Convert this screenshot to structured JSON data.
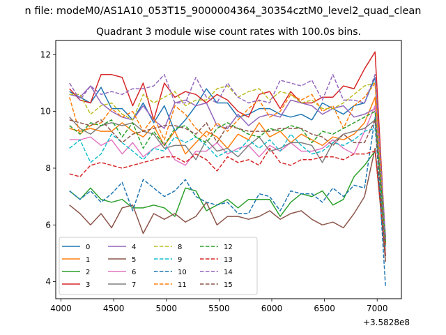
{
  "chart_data": {
    "type": "line",
    "suptitle": "n file: modeM0/AS1A10_053T15_9000004364_30354cztM0_level2_quad_clean",
    "title": "Quadrant 3 module wise count rates with 100.0s bins.",
    "xlabel": "",
    "ylabel": "",
    "x_offset_label": "+3.5828e8",
    "xlim": [
      3950,
      7230
    ],
    "ylim": [
      3.4,
      12.5
    ],
    "xticks": [
      4000,
      4500,
      5000,
      5500,
      6000,
      6500,
      7000
    ],
    "yticks": [
      4,
      6,
      8,
      10,
      12
    ],
    "grid": false,
    "legend_position": "lower-left",
    "legend_columns": 4,
    "x": [
      4080,
      4180,
      4280,
      4380,
      4480,
      4580,
      4680,
      4780,
      4880,
      4980,
      5080,
      5180,
      5280,
      5380,
      5480,
      5580,
      5680,
      5780,
      5880,
      5980,
      6080,
      6180,
      6280,
      6380,
      6480,
      6580,
      6680,
      6780,
      6880,
      6980,
      7080
    ],
    "series": [
      {
        "name": "0",
        "color": "#1f77b4",
        "style": "solid",
        "values": [
          10.7,
          10.5,
          10.3,
          10.85,
          10.1,
          10.1,
          9.7,
          10.3,
          9.6,
          10.2,
          9.3,
          9.7,
          10.2,
          10.8,
          10.3,
          10.3,
          9.8,
          9.9,
          10.1,
          10.1,
          9.9,
          9.8,
          9.9,
          9.7,
          10.3,
          10.1,
          9.9,
          10.2,
          10.3,
          11.2,
          5.5
        ]
      },
      {
        "name": "1",
        "color": "#ff7f0e",
        "style": "solid",
        "values": [
          9.4,
          9.3,
          9.4,
          9.3,
          9.3,
          9.6,
          9.3,
          9.1,
          9.5,
          8.8,
          9.3,
          8.5,
          8.9,
          9.3,
          9.1,
          8.7,
          9.2,
          9.0,
          9.6,
          9.1,
          9.3,
          8.9,
          9.2,
          9.0,
          8.8,
          9.1,
          9.0,
          9.2,
          9.6,
          10.5,
          5.5
        ]
      },
      {
        "name": "2",
        "color": "#2ca02c",
        "style": "solid",
        "values": [
          7.2,
          6.9,
          7.3,
          6.9,
          6.8,
          6.9,
          6.6,
          6.6,
          6.7,
          6.6,
          6.3,
          7.3,
          7.2,
          6.5,
          6.7,
          6.9,
          6.6,
          6.9,
          6.9,
          6.9,
          6.3,
          6.8,
          7.1,
          7.0,
          7.2,
          6.7,
          6.9,
          7.7,
          8.1,
          8.6,
          5.5
        ]
      },
      {
        "name": "3",
        "color": "#d62728",
        "style": "solid",
        "values": [
          10.8,
          10.4,
          10.3,
          11.3,
          11.3,
          11.2,
          10.2,
          11.0,
          9.7,
          11.0,
          10.5,
          10.7,
          10.6,
          10.3,
          10.6,
          10.4,
          10.0,
          9.8,
          10.6,
          10.7,
          10.1,
          10.7,
          10.3,
          10.3,
          10.5,
          10.5,
          10.9,
          10.8,
          11.5,
          12.1,
          5.3
        ]
      },
      {
        "name": "4",
        "color": "#9467bd",
        "style": "solid",
        "values": [
          10.6,
          10.5,
          10.9,
          10.3,
          10.0,
          9.8,
          9.7,
          10.2,
          9.7,
          9.4,
          10.3,
          10.4,
          10.2,
          10.3,
          9.5,
          9.4,
          9.9,
          9.5,
          9.8,
          9.9,
          9.8,
          10.4,
          10.3,
          10.2,
          9.9,
          10.1,
          10.2,
          9.8,
          9.9,
          10.1,
          5.4
        ]
      },
      {
        "name": "5",
        "color": "#8c564b",
        "style": "solid",
        "values": [
          6.7,
          6.4,
          6.0,
          6.4,
          5.9,
          6.6,
          6.7,
          5.7,
          6.4,
          6.2,
          6.4,
          6.1,
          6.3,
          6.8,
          6.0,
          6.3,
          6.3,
          6.2,
          6.3,
          6.5,
          6.2,
          6.4,
          6.5,
          6.2,
          6.0,
          6.1,
          5.9,
          6.4,
          7.0,
          8.7,
          4.7
        ]
      },
      {
        "name": "6",
        "color": "#e377c2",
        "style": "solid",
        "values": [
          9.0,
          9.0,
          9.1,
          8.8,
          9.0,
          8.5,
          8.9,
          8.4,
          8.7,
          8.9,
          8.3,
          8.1,
          8.6,
          8.6,
          8.9,
          8.5,
          8.7,
          8.8,
          8.4,
          8.8,
          8.6,
          8.9,
          8.6,
          8.6,
          8.7,
          9.0,
          8.7,
          8.5,
          9.3,
          10.2,
          5.4
        ]
      },
      {
        "name": "7",
        "color": "#7f7f7f",
        "style": "solid",
        "values": [
          9.8,
          9.4,
          9.2,
          9.5,
          9.6,
          9.5,
          9.6,
          9.3,
          9.2,
          8.7,
          8.8,
          8.8,
          8.3,
          9.0,
          8.6,
          8.7,
          8.4,
          8.8,
          9.1,
          8.6,
          8.7,
          8.9,
          8.9,
          8.8,
          8.2,
          8.9,
          9.2,
          9.3,
          9.4,
          9.7,
          5.6
        ]
      },
      {
        "name": "8",
        "color": "#bcbd22",
        "style": "dashed",
        "values": [
          10.6,
          10.6,
          9.9,
          10.2,
          10.3,
          9.9,
          9.7,
          10.6,
          10.3,
          10.5,
          10.7,
          10.2,
          10.4,
          10.4,
          10.8,
          10.9,
          10.5,
          10.7,
          10.8,
          10.4,
          10.7,
          10.6,
          10.3,
          10.4,
          10.1,
          10.1,
          10.3,
          10.6,
          10.9,
          11.0,
          5.5
        ]
      },
      {
        "name": "9",
        "color": "#17becf",
        "style": "dashed",
        "values": [
          8.7,
          9.0,
          8.2,
          8.5,
          9.2,
          8.9,
          8.6,
          8.3,
          8.7,
          8.6,
          9.1,
          8.9,
          9.1,
          8.8,
          8.4,
          8.6,
          8.6,
          9.0,
          8.7,
          9.0,
          8.6,
          9.2,
          8.8,
          8.5,
          8.6,
          8.9,
          8.8,
          9.0,
          9.3,
          9.4,
          5.2
        ]
      },
      {
        "name": "10",
        "color": "#1f77b4",
        "style": "dashed",
        "values": [
          7.2,
          6.9,
          7.2,
          6.8,
          7.1,
          7.5,
          6.5,
          7.6,
          7.3,
          7.0,
          7.2,
          7.6,
          7.0,
          6.8,
          6.7,
          6.8,
          6.4,
          6.4,
          7.1,
          7.0,
          6.5,
          7.2,
          7.1,
          7.1,
          6.8,
          7.3,
          7.0,
          7.4,
          7.3,
          9.8,
          3.8
        ]
      },
      {
        "name": "11",
        "color": "#ff7f0e",
        "style": "dashed",
        "values": [
          10.5,
          9.2,
          9.5,
          9.6,
          10.1,
          9.8,
          10.0,
          9.3,
          9.8,
          9.0,
          10.2,
          9.9,
          9.4,
          9.1,
          9.6,
          9.3,
          9.7,
          10.1,
          10.4,
          9.8,
          10.0,
          10.6,
          10.4,
          10.6,
          10.0,
          10.2,
          9.4,
          10.2,
          10.5,
          11.0,
          5.3
        ]
      },
      {
        "name": "12",
        "color": "#2ca02c",
        "style": "dashed",
        "values": [
          9.5,
          9.2,
          9.6,
          9.5,
          9.7,
          9.1,
          9.6,
          8.7,
          9.3,
          8.8,
          9.4,
          9.5,
          9.1,
          8.9,
          9.4,
          9.6,
          9.4,
          9.2,
          9.1,
          9.4,
          9.3,
          9.5,
          9.4,
          8.9,
          9.3,
          9.2,
          9.4,
          9.6,
          9.8,
          10.0,
          5.4
        ]
      },
      {
        "name": "13",
        "color": "#d62728",
        "style": "dashed",
        "values": [
          7.8,
          7.7,
          8.1,
          8.2,
          8.1,
          8.0,
          8.1,
          8.2,
          8.3,
          8.4,
          8.4,
          8.2,
          8.5,
          8.3,
          7.9,
          8.4,
          8.2,
          8.3,
          8.1,
          8.7,
          8.2,
          8.1,
          8.3,
          8.3,
          8.4,
          8.4,
          8.3,
          8.5,
          8.5,
          8.6,
          5.0
        ]
      },
      {
        "name": "14",
        "color": "#9467bd",
        "style": "dashed",
        "values": [
          11.0,
          10.4,
          10.9,
          10.6,
          10.7,
          10.6,
          10.8,
          10.8,
          10.9,
          11.3,
          10.3,
          10.3,
          11.2,
          10.5,
          10.3,
          11.0,
          10.5,
          10.3,
          10.4,
          10.3,
          11.1,
          11.0,
          10.9,
          11.1,
          10.4,
          11.3,
          10.4,
          10.4,
          10.3,
          11.3,
          5.5
        ]
      },
      {
        "name": "15",
        "color": "#8c564b",
        "style": "dashed",
        "values": [
          9.7,
          9.6,
          9.5,
          9.7,
          9.3,
          8.9,
          9.2,
          9.3,
          9.4,
          9.5,
          9.5,
          9.4,
          9.2,
          9.6,
          8.9,
          9.5,
          9.4,
          9.3,
          9.3,
          9.3,
          9.4,
          9.4,
          9.4,
          9.2,
          9.1,
          8.8,
          9.2,
          8.9,
          8.9,
          9.7,
          4.9
        ]
      }
    ]
  }
}
